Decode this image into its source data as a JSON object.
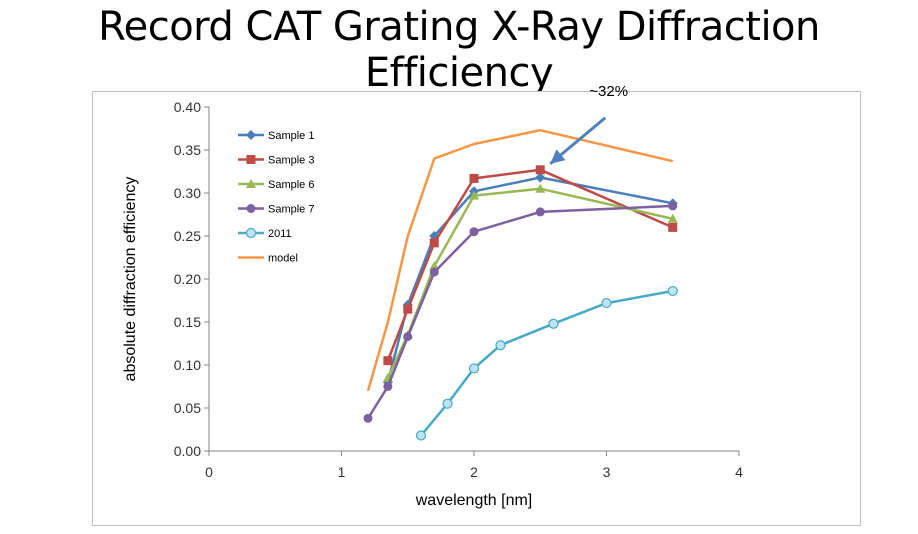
{
  "slide": {
    "title": "Record CAT Grating X-Ray Diffraction Efficiency"
  },
  "chart_data": {
    "type": "line",
    "xlabel": "wavelength [nm]",
    "ylabel": "absolute diffraction efficiency",
    "xlim": [
      0,
      4
    ],
    "ylim": [
      0,
      0.4
    ],
    "xticks": [
      0,
      1,
      2,
      3,
      4
    ],
    "xtick_labels": [
      "0",
      "1",
      "2",
      "3",
      "4"
    ],
    "yticks": [
      0,
      0.05,
      0.1,
      0.15,
      0.2,
      0.25,
      0.3,
      0.35,
      0.4
    ],
    "ytick_labels": [
      "0.00",
      "0.05",
      "0.10",
      "0.15",
      "0.20",
      "0.25",
      "0.30",
      "0.35",
      "0.40"
    ],
    "grid": false,
    "legend_position": "top-left",
    "series": [
      {
        "name": "Sample 1",
        "color": "#4a7ebb",
        "marker": "diamond",
        "x": [
          1.35,
          1.5,
          1.7,
          2.0,
          2.5,
          3.5
        ],
        "y": [
          0.08,
          0.17,
          0.25,
          0.302,
          0.318,
          0.288
        ]
      },
      {
        "name": "Sample 3",
        "color": "#be4b48",
        "marker": "square",
        "x": [
          1.35,
          1.5,
          1.7,
          2.0,
          2.5,
          3.5
        ],
        "y": [
          0.105,
          0.165,
          0.242,
          0.317,
          0.327,
          0.26
        ]
      },
      {
        "name": "Sample 6",
        "color": "#98b954",
        "marker": "triangle",
        "x": [
          1.35,
          1.5,
          1.7,
          2.0,
          2.5,
          3.5
        ],
        "y": [
          0.085,
          0.135,
          0.215,
          0.297,
          0.305,
          0.27
        ]
      },
      {
        "name": "Sample 7",
        "color": "#7d60a0",
        "marker": "circle",
        "x": [
          1.2,
          1.35,
          1.5,
          1.7,
          2.0,
          2.5,
          3.5
        ],
        "y": [
          0.038,
          0.075,
          0.133,
          0.208,
          0.255,
          0.278,
          0.285
        ]
      },
      {
        "name": "2011",
        "color": "#46aac5",
        "marker": "open-circle",
        "x": [
          1.6,
          1.8,
          2.0,
          2.2,
          2.6,
          3.0,
          3.5
        ],
        "y": [
          0.018,
          0.055,
          0.096,
          0.123,
          0.148,
          0.172,
          0.186
        ]
      },
      {
        "name": "model",
        "color": "#f79646",
        "marker": "none",
        "x": [
          1.2,
          1.35,
          1.5,
          1.7,
          2.0,
          2.5,
          3.5
        ],
        "y": [
          0.07,
          0.15,
          0.25,
          0.34,
          0.357,
          0.373,
          0.337
        ]
      }
    ],
    "annotations": [
      {
        "text": "~32%",
        "x": 2.5,
        "y": 0.327
      }
    ]
  }
}
